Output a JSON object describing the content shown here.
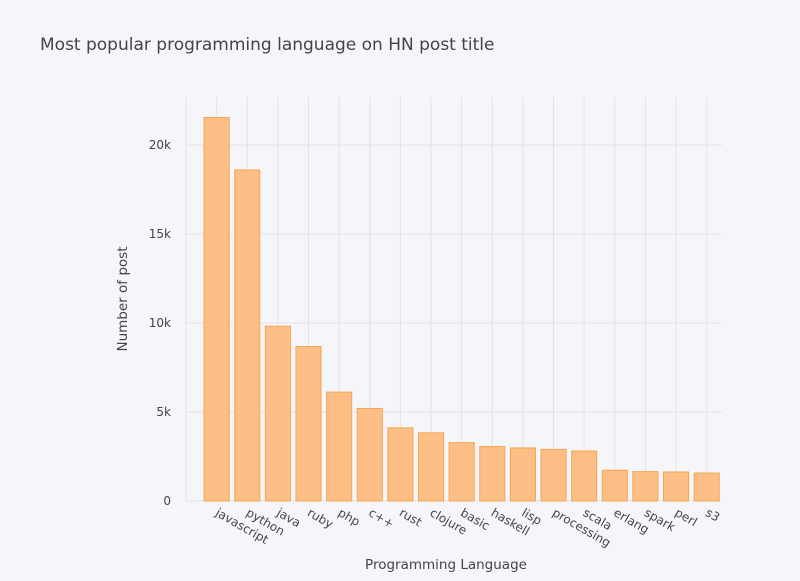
{
  "chart_data": {
    "type": "bar",
    "title": "Most popular programming language on HN post title",
    "xlabel": "Programming Language",
    "ylabel": "Number of post",
    "categories": [
      "javascript",
      "python",
      "java",
      "ruby",
      "php",
      "c++",
      "rust",
      "clojure",
      "basic",
      "haskell",
      "lisp",
      "processing",
      "scala",
      "erlang",
      "spark",
      "perl",
      "s3"
    ],
    "values": [
      21550,
      18600,
      9820,
      8680,
      6120,
      5200,
      4110,
      3830,
      3280,
      3060,
      2980,
      2900,
      2810,
      1730,
      1650,
      1630,
      1570
    ],
    "ylim": [
      0,
      22700
    ],
    "yticks": [
      0,
      5000,
      10000,
      15000,
      20000
    ],
    "ytick_labels": [
      "0",
      "5k",
      "10k",
      "15k",
      "20k"
    ],
    "grid": true,
    "bar_color": "#fdbf85",
    "bar_edge_color": "#f5a552",
    "background": "#f5f6fa"
  }
}
